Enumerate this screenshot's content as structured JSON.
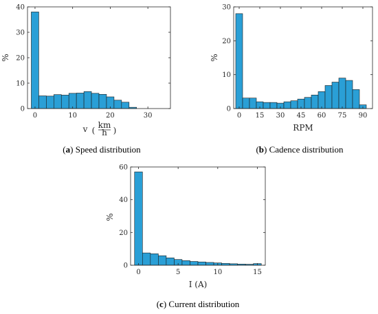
{
  "bar_color": "#2a9fd6",
  "chart_data": [
    {
      "type": "bar",
      "caption": {
        "letter": "a",
        "text": "Speed distribution"
      },
      "xlabel": "v",
      "xlabel_unit_num": "km",
      "xlabel_unit_den": "h",
      "ylabel": "%",
      "xlim": [
        -2,
        36
      ],
      "ylim": [
        0,
        40
      ],
      "xticks": [
        0,
        10,
        20,
        30
      ],
      "yticks": [
        0,
        10,
        20,
        30,
        40
      ],
      "bin_start": -1,
      "bin_width": 2,
      "values": [
        38,
        5,
        4.9,
        5.5,
        5.3,
        6,
        6.1,
        6.7,
        6,
        5.6,
        4.6,
        3.3,
        2.5,
        0.5
      ]
    },
    {
      "type": "bar",
      "caption": {
        "letter": "b",
        "text": "Cadence distribution"
      },
      "xlabel": "RPM",
      "ylabel": "%",
      "xlim": [
        -4,
        97
      ],
      "ylim": [
        0,
        30
      ],
      "xticks": [
        0,
        15,
        30,
        45,
        60,
        75,
        90
      ],
      "yticks": [
        0,
        10,
        20,
        30
      ],
      "bin_start": -2.5,
      "bin_width": 5,
      "values": [
        28,
        3.1,
        3.1,
        2,
        1.8,
        1.8,
        1.6,
        2,
        2.3,
        2.8,
        3.3,
        4,
        5,
        6.8,
        7.8,
        9,
        8.3,
        5.6,
        1.1
      ]
    },
    {
      "type": "bar",
      "caption": {
        "letter": "c",
        "text": "Current distribution"
      },
      "xlabel": "I (A)",
      "ylabel": "%",
      "xlim": [
        -1,
        16
      ],
      "ylim": [
        0,
        60
      ],
      "xticks": [
        0,
        5,
        10,
        15
      ],
      "yticks": [
        0,
        20,
        40,
        60
      ],
      "bin_start": -0.5,
      "bin_width": 1,
      "values": [
        57,
        7.5,
        7,
        5.8,
        4.5,
        3.5,
        2.8,
        2.3,
        2,
        1.7,
        1.4,
        1.1,
        0.9,
        0.7,
        0.6,
        1
      ]
    }
  ]
}
